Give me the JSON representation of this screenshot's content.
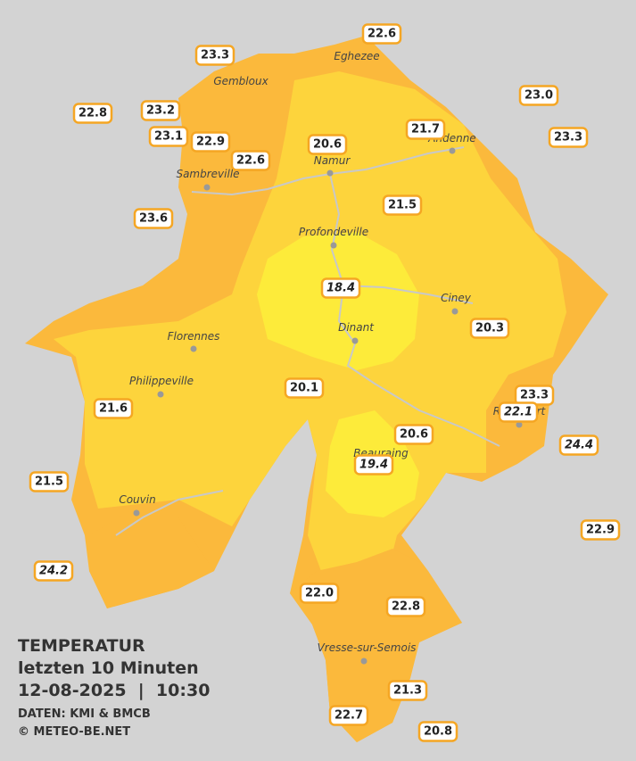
{
  "title": "TEMPERATUR",
  "subtitle": "letzten 10 Minuten",
  "datetime": "12-08-2025  |  10:30",
  "source": "DATEN: KMI & BMCB",
  "copyright": "© METEO-BE.NET",
  "cities": [
    "Eghezee",
    "Gembloux",
    "Andenne",
    "Namur",
    "Sambreville",
    "Profondeville",
    "Ciney",
    "Dinant",
    "Florennes",
    "Philippeville",
    "Beauraing",
    "Rochefort",
    "Couvin",
    "Vresse-sur-Semois"
  ],
  "stations": [
    "22.6",
    "23.3",
    "23.0",
    "22.8",
    "23.2",
    "21.7",
    "23.1",
    "22.9",
    "20.6",
    "23.3",
    "22.6",
    "23.6",
    "21.5",
    "18.4",
    "20.3",
    "20.1",
    "23.3",
    "22.1",
    "21.6",
    "24.4",
    "20.6",
    "19.4",
    "21.5",
    "22.9",
    "24.2",
    "22.0",
    "22.8",
    "21.3",
    "22.7",
    "20.8"
  ]
}
